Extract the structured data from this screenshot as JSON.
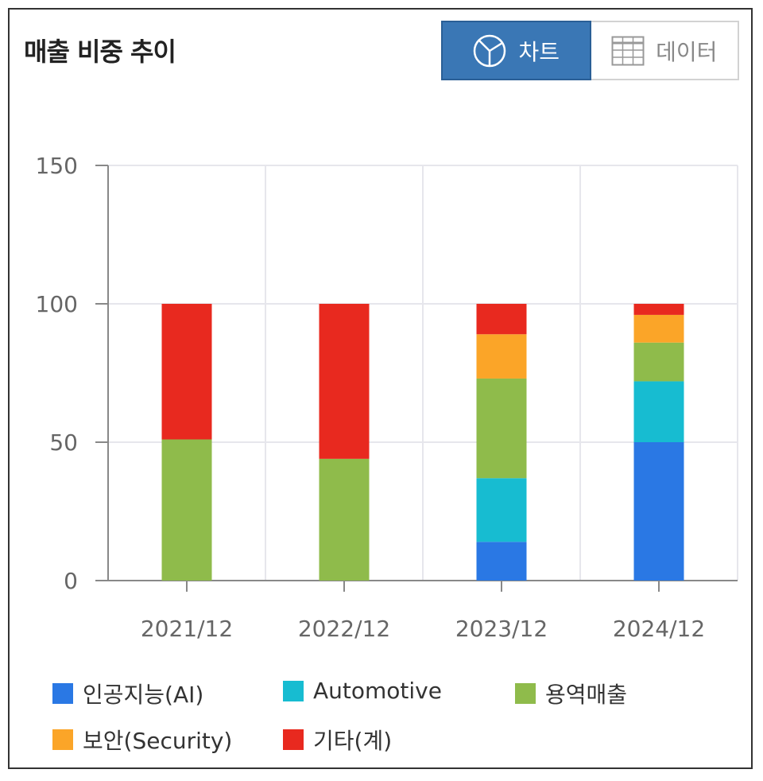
{
  "header": {
    "title": "매출 비중 추이"
  },
  "toggle": {
    "chart_label": "차트",
    "data_label": "데이터"
  },
  "icons": {
    "chart": "pie-chart-icon",
    "data": "table-grid-icon"
  },
  "colors": {
    "ai": "#2a78e4",
    "automotive": "#17bcd1",
    "service": "#8fbb4b",
    "security": "#fba528",
    "other": "#e8291f",
    "grid": "#e6e6ec",
    "axis": "#888888",
    "tick_text": "#666666"
  },
  "chart_data": {
    "type": "bar",
    "stacked": true,
    "categories": [
      "2021/12",
      "2022/12",
      "2023/12",
      "2024/12"
    ],
    "series": [
      {
        "name": "인공지능(AI)",
        "key": "ai",
        "values": [
          0,
          0,
          14,
          50
        ]
      },
      {
        "name": "Automotive",
        "key": "automotive",
        "values": [
          0,
          0,
          23,
          22
        ]
      },
      {
        "name": "용역매출",
        "key": "service",
        "values": [
          51,
          44,
          36,
          14
        ]
      },
      {
        "name": "보안(Security)",
        "key": "security",
        "values": [
          0,
          0,
          16,
          10
        ]
      },
      {
        "name": "기타(계)",
        "key": "other",
        "values": [
          49,
          56,
          11,
          4
        ]
      }
    ],
    "yticks": [
      "0",
      "50",
      "100",
      "150"
    ],
    "ylim": [
      0,
      150
    ],
    "grid": true,
    "legend_position": "bottom"
  }
}
